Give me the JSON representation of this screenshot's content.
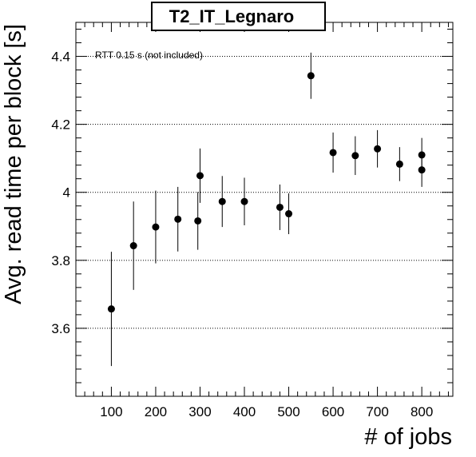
{
  "chart_data": {
    "type": "scatter",
    "title": "T2_IT_Legnaro",
    "xlabel": "# of jobs",
    "ylabel": "Avg. read time per block [s]",
    "annotation": "RTT 0.15 s (not included)",
    "xlim": [
      20,
      870
    ],
    "ylim": [
      3.4,
      4.5
    ],
    "x_ticks": [
      100,
      200,
      300,
      400,
      500,
      600,
      700,
      800
    ],
    "x_tick_labels": [
      "100",
      "200",
      "300",
      "400",
      "500",
      "600",
      "700",
      "800"
    ],
    "y_ticks": [
      3.6,
      3.8,
      4.0,
      4.2,
      4.4
    ],
    "y_tick_labels": [
      "3.6",
      "3.8",
      "4",
      "4.2",
      "4.4"
    ],
    "grid": "horizontal-dotted",
    "series": [
      {
        "x": [
          100,
          150,
          200,
          250,
          295,
          300,
          350,
          400,
          480,
          500,
          550,
          600,
          650,
          700,
          750,
          800,
          800
        ],
        "y": [
          3.657,
          3.843,
          3.898,
          3.921,
          3.916,
          4.049,
          3.973,
          3.973,
          3.956,
          3.937,
          4.343,
          4.117,
          4.108,
          4.128,
          4.083,
          4.066,
          4.11
        ],
        "yerr": [
          0.168,
          0.13,
          0.107,
          0.095,
          0.085,
          0.08,
          0.075,
          0.07,
          0.067,
          0.06,
          0.068,
          0.059,
          0.057,
          0.055,
          0.05,
          0.05,
          0.05
        ]
      }
    ]
  }
}
